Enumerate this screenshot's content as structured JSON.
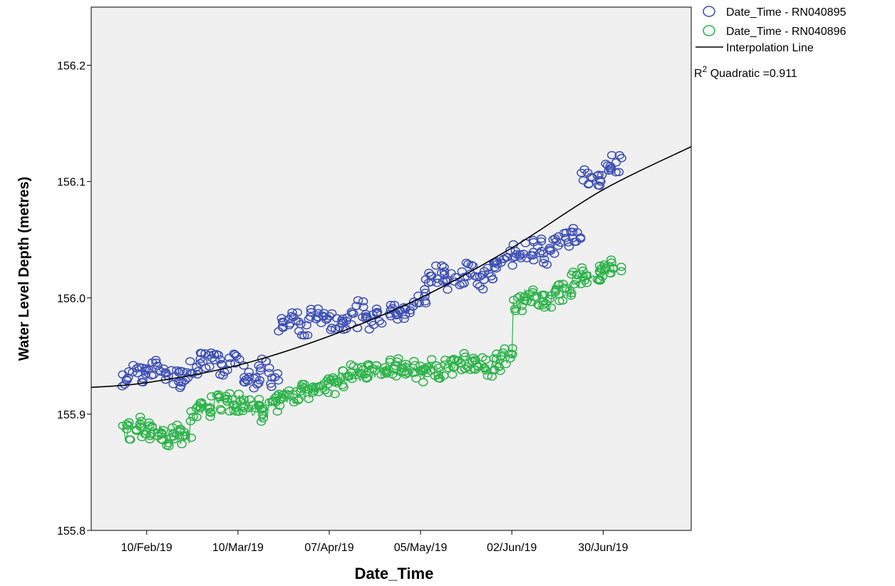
{
  "chart_data": {
    "type": "scatter",
    "title": "",
    "xlabel": "Date_Time",
    "ylabel": "Water Level Depth (metres)",
    "x_axis": {
      "kind": "date",
      "range": [
        "2019-01-24",
        "2019-07-27"
      ],
      "ticks": [
        {
          "label": "10/Feb/19",
          "date": "2019-02-10"
        },
        {
          "label": "10/Mar/19",
          "date": "2019-03-10"
        },
        {
          "label": "07/Apr/19",
          "date": "2019-04-07"
        },
        {
          "label": "05/May/19",
          "date": "2019-05-05"
        },
        {
          "label": "02/Jun/19",
          "date": "2019-06-02"
        },
        {
          "label": "30/Jun/19",
          "date": "2019-06-30"
        }
      ]
    },
    "y_axis": {
      "range": [
        155.8,
        156.25
      ],
      "ticks": [
        {
          "label": "155.8",
          "value": 155.8
        },
        {
          "label": "155.9",
          "value": 155.9
        },
        {
          "label": "156.0",
          "value": 156.0
        },
        {
          "label": "156.1",
          "value": 156.1
        },
        {
          "label": "156.2",
          "value": 156.2
        }
      ]
    },
    "grid": false,
    "legend_position": "top-right, outside plot",
    "series": [
      {
        "name": "Date_Time - RN040895",
        "marker": "open-circle",
        "color": "#3f51b5",
        "points": [
          [
            "2019-02-04",
            155.93
          ],
          [
            "2019-02-07",
            155.935
          ],
          [
            "2019-02-10",
            155.935
          ],
          [
            "2019-02-13",
            155.94
          ],
          [
            "2019-02-16",
            155.935
          ],
          [
            "2019-02-19",
            155.93
          ],
          [
            "2019-02-22",
            155.935
          ],
          [
            "2019-02-25",
            155.94
          ],
          [
            "2019-02-28",
            155.945
          ],
          [
            "2019-03-03",
            155.945
          ],
          [
            "2019-03-06",
            155.94
          ],
          [
            "2019-03-09",
            155.95
          ],
          [
            "2019-03-12",
            155.935
          ],
          [
            "2019-03-15",
            155.93
          ],
          [
            "2019-03-18",
            155.94
          ],
          [
            "2019-03-21",
            155.93
          ],
          [
            "2019-03-24",
            155.975
          ],
          [
            "2019-03-27",
            155.98
          ],
          [
            "2019-03-30",
            155.975
          ],
          [
            "2019-04-02",
            155.985
          ],
          [
            "2019-04-05",
            155.985
          ],
          [
            "2019-04-08",
            155.98
          ],
          [
            "2019-04-11",
            155.975
          ],
          [
            "2019-04-14",
            155.98
          ],
          [
            "2019-04-17",
            155.99
          ],
          [
            "2019-04-20",
            155.98
          ],
          [
            "2019-04-23",
            155.985
          ],
          [
            "2019-04-26",
            155.99
          ],
          [
            "2019-04-29",
            155.985
          ],
          [
            "2019-05-02",
            155.99
          ],
          [
            "2019-05-05",
            156.0
          ],
          [
            "2019-05-08",
            156.015
          ],
          [
            "2019-05-11",
            156.02
          ],
          [
            "2019-05-14",
            156.015
          ],
          [
            "2019-05-17",
            156.015
          ],
          [
            "2019-05-20",
            156.025
          ],
          [
            "2019-05-23",
            156.015
          ],
          [
            "2019-05-26",
            156.02
          ],
          [
            "2019-05-29",
            156.025
          ],
          [
            "2019-06-01",
            156.035
          ],
          [
            "2019-06-04",
            156.04
          ],
          [
            "2019-06-07",
            156.04
          ],
          [
            "2019-06-10",
            156.045
          ],
          [
            "2019-06-13",
            156.035
          ],
          [
            "2019-06-16",
            156.045
          ],
          [
            "2019-06-19",
            156.05
          ],
          [
            "2019-06-22",
            156.055
          ],
          [
            "2019-06-25",
            156.105
          ],
          [
            "2019-06-28",
            156.1
          ],
          [
            "2019-07-01",
            156.11
          ],
          [
            "2019-07-04",
            156.115
          ]
        ]
      },
      {
        "name": "Date_Time - RN040896",
        "marker": "open-circle",
        "color": "#2db34a",
        "points": [
          [
            "2019-02-04",
            155.885
          ],
          [
            "2019-02-07",
            155.89
          ],
          [
            "2019-02-10",
            155.885
          ],
          [
            "2019-02-13",
            155.885
          ],
          [
            "2019-02-16",
            155.88
          ],
          [
            "2019-02-19",
            155.885
          ],
          [
            "2019-02-22",
            155.88
          ],
          [
            "2019-02-25",
            155.9
          ],
          [
            "2019-02-28",
            155.905
          ],
          [
            "2019-03-03",
            155.91
          ],
          [
            "2019-03-06",
            155.91
          ],
          [
            "2019-03-09",
            155.905
          ],
          [
            "2019-03-12",
            155.91
          ],
          [
            "2019-03-15",
            155.905
          ],
          [
            "2019-03-18",
            155.9
          ],
          [
            "2019-03-21",
            155.91
          ],
          [
            "2019-03-24",
            155.915
          ],
          [
            "2019-03-27",
            155.915
          ],
          [
            "2019-03-30",
            155.92
          ],
          [
            "2019-04-02",
            155.92
          ],
          [
            "2019-04-05",
            155.925
          ],
          [
            "2019-04-08",
            155.925
          ],
          [
            "2019-04-11",
            155.93
          ],
          [
            "2019-04-14",
            155.935
          ],
          [
            "2019-04-17",
            155.935
          ],
          [
            "2019-04-20",
            155.935
          ],
          [
            "2019-04-23",
            155.935
          ],
          [
            "2019-04-26",
            155.94
          ],
          [
            "2019-04-29",
            155.94
          ],
          [
            "2019-05-02",
            155.94
          ],
          [
            "2019-05-05",
            155.935
          ],
          [
            "2019-05-08",
            155.94
          ],
          [
            "2019-05-11",
            155.935
          ],
          [
            "2019-05-14",
            155.94
          ],
          [
            "2019-05-17",
            155.945
          ],
          [
            "2019-05-20",
            155.945
          ],
          [
            "2019-05-23",
            155.945
          ],
          [
            "2019-05-26",
            155.94
          ],
          [
            "2019-05-29",
            155.945
          ],
          [
            "2019-06-01",
            155.95
          ],
          [
            "2019-06-04",
            155.995
          ],
          [
            "2019-06-07",
            156.0
          ],
          [
            "2019-06-10",
            156.0
          ],
          [
            "2019-06-13",
            155.995
          ],
          [
            "2019-06-16",
            156.005
          ],
          [
            "2019-06-19",
            156.005
          ],
          [
            "2019-06-22",
            156.015
          ],
          [
            "2019-06-25",
            156.02
          ],
          [
            "2019-06-28",
            156.02
          ],
          [
            "2019-07-01",
            156.025
          ],
          [
            "2019-07-04",
            156.025
          ]
        ]
      },
      {
        "name": "Interpolation Line",
        "kind": "line",
        "color": "#000000",
        "points": [
          [
            "2019-01-24",
            155.923
          ],
          [
            "2019-02-10",
            155.927
          ],
          [
            "2019-03-10",
            155.942
          ],
          [
            "2019-04-07",
            155.967
          ],
          [
            "2019-05-05",
            156.0
          ],
          [
            "2019-06-02",
            156.043
          ],
          [
            "2019-06-30",
            156.093
          ],
          [
            "2019-07-27",
            156.13
          ]
        ]
      }
    ],
    "annotations": [
      {
        "text_main": "R",
        "text_sup": "2",
        "text_rest": " Quadratic =0.911"
      }
    ]
  }
}
